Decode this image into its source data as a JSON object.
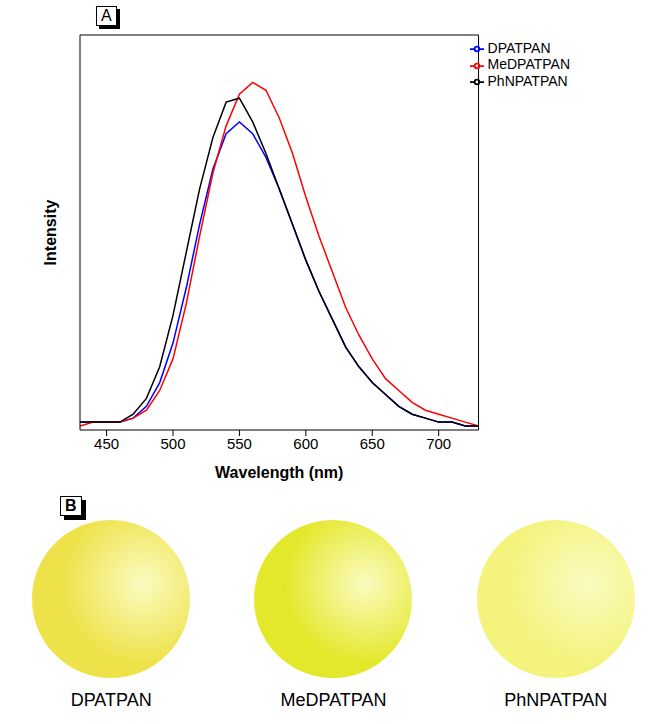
{
  "chart_data": {
    "type": "line",
    "x_label": "Wavelength (nm)",
    "y_label": "Intensity",
    "x": [
      430,
      440,
      450,
      460,
      470,
      480,
      490,
      500,
      510,
      520,
      530,
      540,
      550,
      560,
      570,
      580,
      590,
      600,
      610,
      620,
      630,
      640,
      650,
      660,
      670,
      680,
      690,
      700,
      710,
      720,
      730
    ],
    "series": [
      {
        "name": "DPATPAN",
        "color": "#0000ff",
        "values": [
          0.02,
          0.02,
          0.02,
          0.02,
          0.03,
          0.06,
          0.12,
          0.22,
          0.36,
          0.52,
          0.66,
          0.75,
          0.78,
          0.75,
          0.69,
          0.61,
          0.52,
          0.43,
          0.35,
          0.28,
          0.21,
          0.16,
          0.12,
          0.09,
          0.06,
          0.04,
          0.03,
          0.02,
          0.02,
          0.01,
          0.01
        ]
      },
      {
        "name": "MeDPATPAN",
        "color": "#ff0000",
        "values": [
          0.01,
          0.02,
          0.02,
          0.02,
          0.03,
          0.05,
          0.1,
          0.18,
          0.32,
          0.49,
          0.65,
          0.77,
          0.85,
          0.88,
          0.86,
          0.79,
          0.7,
          0.59,
          0.49,
          0.4,
          0.31,
          0.24,
          0.18,
          0.13,
          0.1,
          0.07,
          0.05,
          0.04,
          0.03,
          0.02,
          0.01
        ]
      },
      {
        "name": "PhNPATPAN",
        "color": "#000000",
        "values": [
          0.02,
          0.02,
          0.02,
          0.02,
          0.04,
          0.08,
          0.16,
          0.29,
          0.45,
          0.61,
          0.74,
          0.83,
          0.84,
          0.78,
          0.7,
          0.61,
          0.52,
          0.43,
          0.35,
          0.28,
          0.21,
          0.16,
          0.12,
          0.09,
          0.06,
          0.04,
          0.03,
          0.02,
          0.02,
          0.01,
          0.01
        ]
      }
    ],
    "xlim": [
      430,
      730
    ],
    "xticks": [
      450,
      500,
      550,
      600,
      650,
      700
    ],
    "ylim": [
      0,
      1
    ],
    "tick_labels": "x",
    "legend": "upper right"
  },
  "panel_labels": [
    "A",
    "B"
  ],
  "photos": [
    {
      "label": "DPATPAN",
      "color": "#eee24a"
    },
    {
      "label": "MeDPATPAN",
      "color": "#e4e82a"
    },
    {
      "label": "PhNPATPAN",
      "color": "#f3f37e"
    }
  ]
}
